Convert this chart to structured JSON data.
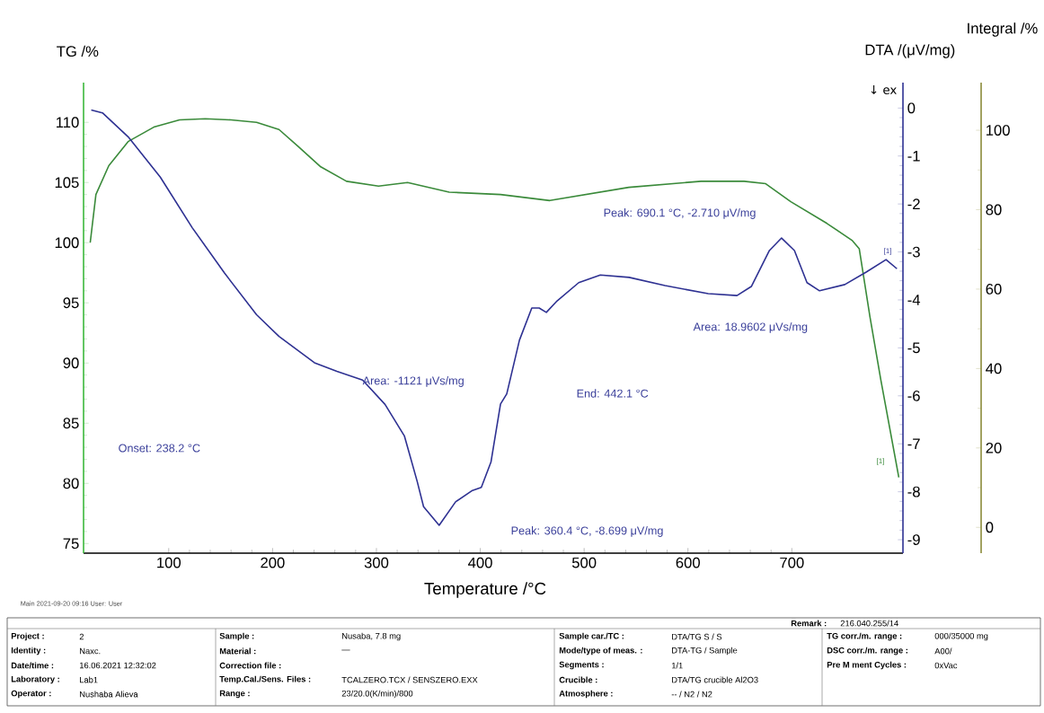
{
  "chart_data": {
    "type": "line",
    "xlabel": "Temperature /°C",
    "ylabel": "TG /%",
    "y2label": "DTA /(μV/mg)",
    "y3label": "Integral /%",
    "xlim": [
      18,
      807
    ],
    "xticks": [
      100,
      200,
      300,
      400,
      500,
      600,
      700
    ],
    "ylim": [
      74.2,
      113.3
    ],
    "yticks": [
      75,
      80,
      85,
      90,
      95,
      100,
      105,
      110
    ],
    "y2lim": [
      -9.28,
      0.53
    ],
    "y2ticks": [
      -9,
      -8,
      -7,
      -6,
      -5,
      -4,
      -3,
      -2,
      -1,
      0
    ],
    "y3lim": [
      -6.5,
      112
    ],
    "y3ticks": [
      0,
      20,
      40,
      60,
      80,
      100
    ],
    "grid": false,
    "series": [
      {
        "axis": "y",
        "color": "#3a8a3a",
        "x": [
          24.4,
          29.9,
          42.3,
          60.9,
          85.6,
          110.4,
          135.2,
          159.9,
          184.6,
          206.2,
          224.7,
          246.4,
          271.2,
          302,
          330,
          370.1,
          419.5,
          467,
          543,
          612.6,
          654,
          674.8,
          699,
          733.8,
          757.9,
          764.9,
          775.3,
          785.7,
          803
        ],
        "values": [
          100.0,
          104.0,
          106.4,
          108.4,
          109.6,
          110.2,
          110.3,
          110.2,
          110.0,
          109.4,
          108.0,
          106.3,
          105.1,
          104.7,
          105.0,
          104.2,
          104.0,
          103.5,
          104.6,
          105.1,
          105.1,
          104.9,
          103.4,
          101.6,
          100.2,
          99.5,
          93.8,
          88.6,
          80.5
        ]
      },
      {
        "axis": "y2",
        "color": "#2e3192",
        "x": [
          25.4,
          36.2,
          60.9,
          91.9,
          122.8,
          153.7,
          184.6,
          206.2,
          240.3,
          261.9,
          286.7,
          308.3,
          327,
          339.2,
          345.4,
          360.4,
          376.2,
          391.8,
          401,
          410.3,
          419.5,
          425.5,
          437.7,
          449.6,
          456.7,
          463.6,
          474,
          494.8,
          515.6,
          543.3,
          577.9,
          619.5,
          647.2,
          661,
          678.4,
          690.1,
          702.5,
          714.6,
          726.7,
          751,
          771.6,
          790.7,
          801.2
        ],
        "values": [
          -0.04,
          -0.1,
          -0.6,
          -1.44,
          -2.5,
          -3.44,
          -4.31,
          -4.76,
          -5.31,
          -5.49,
          -5.67,
          -6.18,
          -6.84,
          -7.78,
          -8.31,
          -8.699,
          -8.21,
          -7.98,
          -7.91,
          -7.38,
          -6.17,
          -5.96,
          -4.84,
          -4.17,
          -4.17,
          -4.26,
          -4.02,
          -3.64,
          -3.48,
          -3.53,
          -3.7,
          -3.87,
          -3.91,
          -3.72,
          -2.97,
          -2.71,
          -2.97,
          -3.64,
          -3.81,
          -3.68,
          -3.42,
          -3.16,
          -3.35
        ]
      }
    ],
    "annotations": [
      "Peak: 360.4 °C, -8.699 μV/mg",
      "Peak: 690.1 °C, -2.710 μV/mg",
      "Onset: 238.2 °C",
      "End: 442.1 °C",
      "Area: -1121 μVs/mg",
      "Area: 18.9602 μVs/mg",
      "[1]",
      "[1]",
      "↓ ex",
      "Main   2021-09-20 09:16   User: User",
      "Remark :",
      "216.040.255/14",
      "Project :",
      "2",
      "Identity :",
      "Naxc.",
      "Date/time :",
      "16.06.2021 12:32:02",
      "Laboratory :",
      "Lab1",
      "Operator :",
      "Nushaba Alieva",
      "Sample :",
      "Nusaba, 7.8 mg",
      "Material :",
      "—",
      "Correction file :",
      "Temp.Cal./Sens. Files :",
      "TCALZERO.TCX / SENSZERO.EXX",
      "Range :",
      "23/20.0(K/min)/800",
      "Sample car./TC :",
      "DTA/TG S / S",
      "Mode/type of meas. :",
      "DTA-TG / Sample",
      "Segments :",
      "1/1",
      "Crucible :",
      "DTA/TG crucible Al2O3",
      "Atmosphere :",
      "-- / N2 / N2",
      "TG corr./m. range :",
      "000/35000 mg",
      "DSC corr./m. range :",
      "A00/",
      "Pre M ment Cycles :",
      "0xVac"
    ]
  }
}
